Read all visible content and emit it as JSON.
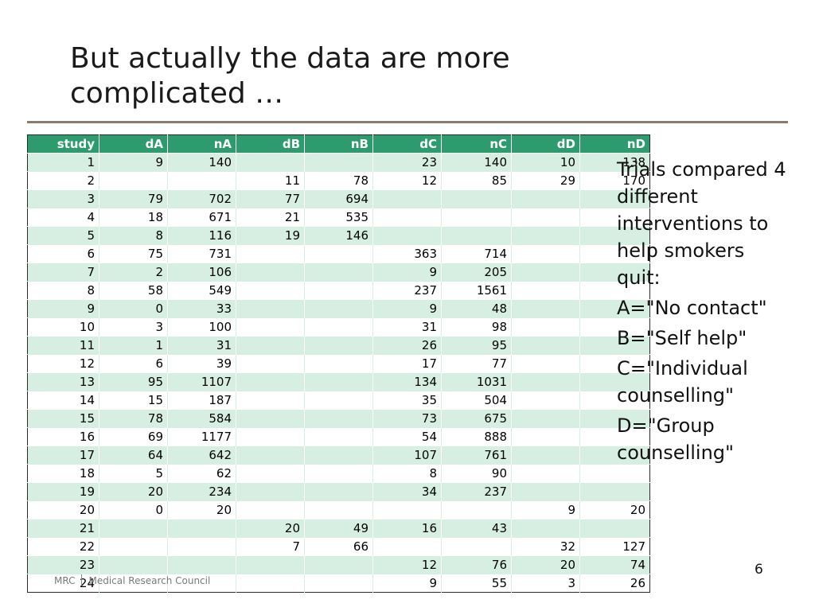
{
  "slide": {
    "title_line1": "But actually the data are more",
    "title_line2": "complicated …",
    "page_number": "6"
  },
  "table": {
    "headers": [
      "study",
      "dA",
      "nA",
      "dB",
      "nB",
      "dC",
      "nC",
      "dD",
      "nD"
    ],
    "rows": [
      [
        "1",
        "9",
        "140",
        "",
        "",
        "23",
        "140",
        "10",
        "138"
      ],
      [
        "2",
        "",
        "",
        "11",
        "78",
        "12",
        "85",
        "29",
        "170"
      ],
      [
        "3",
        "79",
        "702",
        "77",
        "694",
        "",
        "",
        "",
        ""
      ],
      [
        "4",
        "18",
        "671",
        "21",
        "535",
        "",
        "",
        "",
        ""
      ],
      [
        "5",
        "8",
        "116",
        "19",
        "146",
        "",
        "",
        "",
        ""
      ],
      [
        "6",
        "75",
        "731",
        "",
        "",
        "363",
        "714",
        "",
        ""
      ],
      [
        "7",
        "2",
        "106",
        "",
        "",
        "9",
        "205",
        "",
        ""
      ],
      [
        "8",
        "58",
        "549",
        "",
        "",
        "237",
        "1561",
        "",
        ""
      ],
      [
        "9",
        "0",
        "33",
        "",
        "",
        "9",
        "48",
        "",
        ""
      ],
      [
        "10",
        "3",
        "100",
        "",
        "",
        "31",
        "98",
        "",
        ""
      ],
      [
        "11",
        "1",
        "31",
        "",
        "",
        "26",
        "95",
        "",
        ""
      ],
      [
        "12",
        "6",
        "39",
        "",
        "",
        "17",
        "77",
        "",
        ""
      ],
      [
        "13",
        "95",
        "1107",
        "",
        "",
        "134",
        "1031",
        "",
        ""
      ],
      [
        "14",
        "15",
        "187",
        "",
        "",
        "35",
        "504",
        "",
        ""
      ],
      [
        "15",
        "78",
        "584",
        "",
        "",
        "73",
        "675",
        "",
        ""
      ],
      [
        "16",
        "69",
        "1177",
        "",
        "",
        "54",
        "888",
        "",
        ""
      ],
      [
        "17",
        "64",
        "642",
        "",
        "",
        "107",
        "761",
        "",
        ""
      ],
      [
        "18",
        "5",
        "62",
        "",
        "",
        "8",
        "90",
        "",
        ""
      ],
      [
        "19",
        "20",
        "234",
        "",
        "",
        "34",
        "237",
        "",
        ""
      ],
      [
        "20",
        "0",
        "20",
        "",
        "",
        "",
        "",
        "9",
        "20"
      ],
      [
        "21",
        "",
        "",
        "20",
        "49",
        "16",
        "43",
        "",
        ""
      ],
      [
        "22",
        "",
        "",
        "7",
        "66",
        "",
        "",
        "32",
        "127"
      ],
      [
        "23",
        "",
        "",
        "",
        "",
        "12",
        "76",
        "20",
        "74"
      ],
      [
        "24",
        "",
        "",
        "",
        "",
        "9",
        "55",
        "3",
        "26"
      ]
    ]
  },
  "sidebar_text": {
    "intro": "Trials compared 4 different interventions to help smokers quit:",
    "a": "A=\"No contact\"",
    "b": "B=\"Self help\"",
    "c": "C=\"Individual counselling\"",
    "d": "D=\"Group counselling\""
  },
  "footer": {
    "org_short": "MRC",
    "org_full": "Medical Research Council"
  },
  "colors": {
    "header_bg": "#2e9b6e",
    "band": "#d7efe2",
    "rule": "#8c7a6e"
  }
}
